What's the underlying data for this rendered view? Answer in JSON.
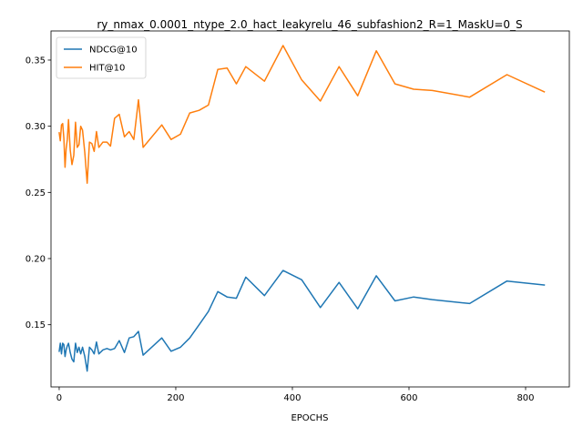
{
  "chart_data": {
    "type": "line",
    "title": "ry_nmax_0.0001_ntype_2.0_hact_leakyrelu_46_subfashion2_R=1_MaskU=0_S",
    "xlabel": "EPOCHS",
    "ylabel": "",
    "xlim": [
      -14,
      875
    ],
    "ylim": [
      0.103,
      0.372
    ],
    "xticks": [
      0,
      200,
      400,
      600,
      800
    ],
    "yticks": [
      0.15,
      0.2,
      0.25,
      0.3,
      0.35
    ],
    "ytick_labels": [
      "0.15",
      "0.20",
      "0.25",
      "0.30",
      "0.35"
    ],
    "grid": false,
    "legend_position": "top-left",
    "series": [
      {
        "name": "NDCG@10",
        "color": "#1f77b4",
        "x": [
          0,
          2,
          4,
          6,
          8,
          10,
          12,
          14,
          16,
          19,
          22,
          25,
          28,
          31,
          34,
          37,
          40,
          44,
          48,
          52,
          56,
          60,
          64,
          68,
          75,
          82,
          88,
          95,
          103,
          112,
          120,
          128,
          136,
          144,
          176,
          192,
          208,
          224,
          240,
          256,
          272,
          288,
          304,
          320,
          352,
          384,
          416,
          448,
          480,
          512,
          544,
          576,
          608,
          640,
          704,
          768,
          832
        ],
        "y": [
          0.13,
          0.136,
          0.128,
          0.136,
          0.135,
          0.126,
          0.131,
          0.134,
          0.136,
          0.129,
          0.124,
          0.122,
          0.136,
          0.129,
          0.133,
          0.128,
          0.133,
          0.126,
          0.115,
          0.133,
          0.131,
          0.128,
          0.137,
          0.128,
          0.131,
          0.132,
          0.131,
          0.132,
          0.138,
          0.129,
          0.14,
          0.141,
          0.145,
          0.127,
          0.14,
          0.13,
          0.133,
          0.14,
          0.15,
          0.16,
          0.175,
          0.171,
          0.17,
          0.186,
          0.172,
          0.191,
          0.184,
          0.163,
          0.182,
          0.162,
          0.187,
          0.168,
          0.171,
          0.169,
          0.166,
          0.183,
          0.18
        ]
      },
      {
        "name": "HIT@10",
        "color": "#ff7f0e",
        "x": [
          0,
          2,
          4,
          6,
          8,
          10,
          12,
          14,
          16,
          19,
          22,
          25,
          28,
          31,
          34,
          37,
          40,
          44,
          48,
          52,
          56,
          60,
          64,
          68,
          75,
          82,
          88,
          95,
          103,
          112,
          120,
          128,
          136,
          144,
          176,
          192,
          208,
          224,
          240,
          256,
          272,
          288,
          304,
          320,
          352,
          384,
          416,
          448,
          480,
          512,
          544,
          576,
          608,
          640,
          704,
          768,
          832
        ],
        "y": [
          0.295,
          0.289,
          0.301,
          0.302,
          0.291,
          0.269,
          0.283,
          0.29,
          0.305,
          0.282,
          0.271,
          0.278,
          0.303,
          0.284,
          0.286,
          0.3,
          0.297,
          0.28,
          0.257,
          0.288,
          0.287,
          0.281,
          0.296,
          0.284,
          0.288,
          0.288,
          0.285,
          0.306,
          0.309,
          0.292,
          0.296,
          0.29,
          0.32,
          0.284,
          0.301,
          0.29,
          0.294,
          0.31,
          0.312,
          0.316,
          0.343,
          0.344,
          0.332,
          0.345,
          0.334,
          0.361,
          0.335,
          0.319,
          0.345,
          0.323,
          0.357,
          0.332,
          0.328,
          0.327,
          0.322,
          0.339,
          0.326
        ]
      }
    ]
  }
}
